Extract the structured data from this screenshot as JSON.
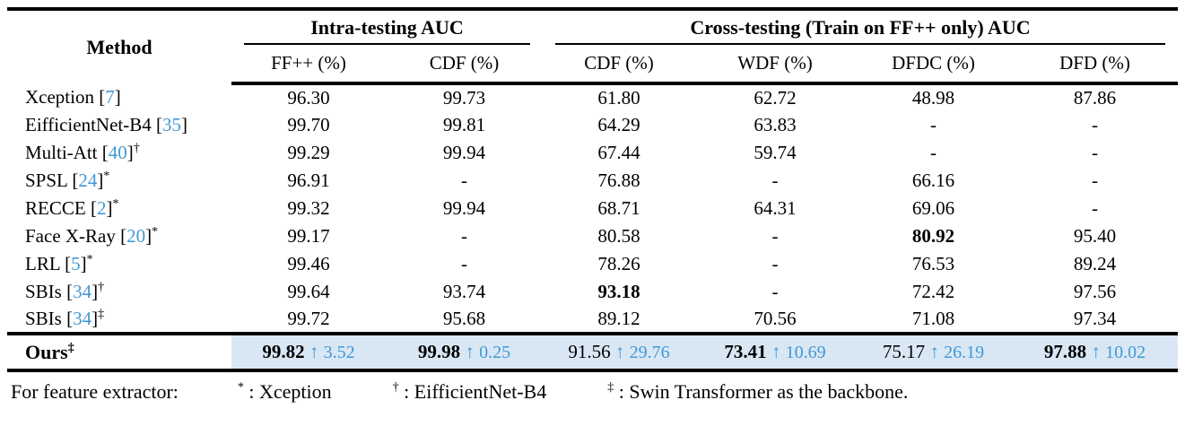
{
  "colors": {
    "citation_blue": "#4199d3",
    "delta_blue": "#4199d3",
    "highlight_blue": "#d9e7f5"
  },
  "glyphs": {
    "up_arrow": "↑",
    "bracket_open": "[",
    "bracket_close": "]",
    "colon_sep": ": ",
    "dash": "-"
  },
  "chart_data": {
    "type": "table",
    "title": "Intra-testing and Cross-testing AUC comparison",
    "column_groups": [
      {
        "label": "Intra-testing AUC",
        "span": 2
      },
      {
        "label": "Cross-testing (Train on FF++ only) AUC",
        "span": 4
      }
    ],
    "columns": [
      "Method",
      "FF++ (%)",
      "CDF (%)",
      "CDF (%)",
      "WDF (%)",
      "DFDC (%)",
      "DFD (%)"
    ],
    "rows": [
      [
        "Xception [7]",
        "96.30",
        "99.73",
        "61.80",
        "62.72",
        "48.98",
        "87.86"
      ],
      [
        "EifficientNet-B4 [35]",
        "99.70",
        "99.81",
        "64.29",
        "63.83",
        "-",
        "-"
      ],
      [
        "Multi-Att [40]†",
        "99.29",
        "99.94",
        "67.44",
        "59.74",
        "-",
        "-"
      ],
      [
        "SPSL [24]*",
        "96.91",
        "-",
        "76.88",
        "-",
        "66.16",
        "-"
      ],
      [
        "RECCE [2]*",
        "99.32",
        "99.94",
        "68.71",
        "64.31",
        "69.06",
        "-"
      ],
      [
        "Face X-Ray [20]*",
        "99.17",
        "-",
        "80.58",
        "-",
        "80.92",
        "95.40"
      ],
      [
        "LRL [5]*",
        "99.46",
        "-",
        "78.26",
        "-",
        "76.53",
        "89.24"
      ],
      [
        "SBIs [34]†",
        "99.64",
        "93.74",
        "93.18",
        "-",
        "72.42",
        "97.56"
      ],
      [
        "SBIs [34]‡",
        "99.72",
        "95.68",
        "89.12",
        "70.56",
        "71.08",
        "97.34"
      ],
      [
        "Ours‡",
        "99.82 ↑3.52",
        "99.98 ↑0.25",
        "91.56 ↑29.76",
        "73.41 ↑10.69",
        "75.17 ↑26.19",
        "97.88 ↑10.02"
      ]
    ]
  },
  "table": {
    "header": {
      "method": "Method",
      "group_intra": "Intra-testing AUC",
      "group_cross": "Cross-testing (Train on FF++ only) AUC",
      "sub": [
        "FF++ (%)",
        "CDF (%)",
        "CDF (%)",
        "WDF (%)",
        "DFDC (%)",
        "DFD (%)"
      ]
    },
    "rows": [
      {
        "name": "Xception",
        "ref": "7",
        "marker": "",
        "values": [
          "96.30",
          "99.73",
          "61.80",
          "62.72",
          "48.98",
          "87.86"
        ],
        "bold": [
          false,
          false,
          false,
          false,
          false,
          false
        ]
      },
      {
        "name": "EifficientNet-B4",
        "ref": "35",
        "marker": "",
        "values": [
          "99.70",
          "99.81",
          "64.29",
          "63.83",
          "-",
          "-"
        ],
        "bold": [
          false,
          false,
          false,
          false,
          false,
          false
        ]
      },
      {
        "name": "Multi-Att",
        "ref": "40",
        "marker": "†",
        "values": [
          "99.29",
          "99.94",
          "67.44",
          "59.74",
          "-",
          "-"
        ],
        "bold": [
          false,
          false,
          false,
          false,
          false,
          false
        ]
      },
      {
        "name": "SPSL",
        "ref": "24",
        "marker": "*",
        "values": [
          "96.91",
          "-",
          "76.88",
          "-",
          "66.16",
          "-"
        ],
        "bold": [
          false,
          false,
          false,
          false,
          false,
          false
        ]
      },
      {
        "name": "RECCE",
        "ref": "2",
        "marker": "*",
        "values": [
          "99.32",
          "99.94",
          "68.71",
          "64.31",
          "69.06",
          "-"
        ],
        "bold": [
          false,
          false,
          false,
          false,
          false,
          false
        ]
      },
      {
        "name": "Face X-Ray",
        "ref": "20",
        "marker": "*",
        "values": [
          "99.17",
          "-",
          "80.58",
          "-",
          "80.92",
          "95.40"
        ],
        "bold": [
          false,
          false,
          false,
          false,
          true,
          false
        ]
      },
      {
        "name": "LRL",
        "ref": "5",
        "marker": "*",
        "values": [
          "99.46",
          "-",
          "78.26",
          "-",
          "76.53",
          "89.24"
        ],
        "bold": [
          false,
          false,
          false,
          false,
          false,
          false
        ]
      },
      {
        "name": "SBIs",
        "ref": "34",
        "marker": "†",
        "values": [
          "99.64",
          "93.74",
          "93.18",
          "-",
          "72.42",
          "97.56"
        ],
        "bold": [
          false,
          false,
          true,
          false,
          false,
          false
        ]
      },
      {
        "name": "SBIs",
        "ref": "34",
        "marker": "‡",
        "values": [
          "99.72",
          "95.68",
          "89.12",
          "70.56",
          "71.08",
          "97.34"
        ],
        "bold": [
          false,
          false,
          false,
          false,
          false,
          false
        ]
      }
    ],
    "ours": {
      "name": "Ours",
      "marker": "‡",
      "values": [
        {
          "v": "99.82",
          "bold": true,
          "delta": "3.52"
        },
        {
          "v": "99.98",
          "bold": true,
          "delta": "0.25"
        },
        {
          "v": "91.56",
          "bold": false,
          "delta": "29.76"
        },
        {
          "v": "73.41",
          "bold": true,
          "delta": "10.69"
        },
        {
          "v": "75.17",
          "bold": false,
          "delta": "26.19"
        },
        {
          "v": "97.88",
          "bold": true,
          "delta": "10.02"
        }
      ]
    },
    "footnote": {
      "lead": "For feature extractor:",
      "entries": [
        {
          "symbol": "*",
          "label": "Xception"
        },
        {
          "symbol": "†",
          "label": "EifficientNet-B4"
        },
        {
          "symbol": "‡",
          "label": "Swin Transformer as the backbone."
        }
      ]
    }
  }
}
